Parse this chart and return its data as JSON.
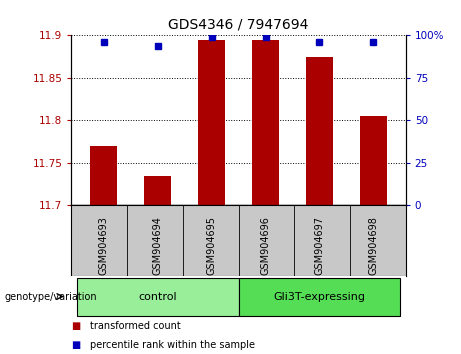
{
  "title": "GDS4346 / 7947694",
  "samples": [
    "GSM904693",
    "GSM904694",
    "GSM904695",
    "GSM904696",
    "GSM904697",
    "GSM904698"
  ],
  "transformed_counts": [
    11.77,
    11.735,
    11.895,
    11.895,
    11.875,
    11.805
  ],
  "percentile_ranks": [
    96,
    94,
    99,
    99,
    96,
    96
  ],
  "ylim_left": [
    11.7,
    11.9
  ],
  "ylim_right": [
    0,
    100
  ],
  "yticks_left": [
    11.7,
    11.75,
    11.8,
    11.85,
    11.9
  ],
  "yticks_right": [
    0,
    25,
    50,
    75,
    100
  ],
  "ytick_labels_left": [
    "11.7",
    "11.75",
    "11.8",
    "11.85",
    "11.9"
  ],
  "ytick_labels_right": [
    "0",
    "25",
    "50",
    "75",
    "100%"
  ],
  "groups": [
    {
      "label": "control",
      "samples_idx": [
        0,
        1,
        2
      ],
      "color": "#99EE99"
    },
    {
      "label": "Gli3T-expressing",
      "samples_idx": [
        3,
        4,
        5
      ],
      "color": "#55DD55"
    }
  ],
  "bar_color": "#AA0000",
  "dot_color": "#0000BB",
  "bar_width": 0.5,
  "xlabel_area_color": "#C8C8C8",
  "genotype_label": "genotype/variation",
  "legend_items": [
    {
      "color": "#AA0000",
      "label": "transformed count"
    },
    {
      "color": "#0000BB",
      "label": "percentile rank within the sample"
    }
  ],
  "title_fontsize": 10,
  "tick_fontsize": 7.5,
  "sample_fontsize": 7,
  "group_fontsize": 8
}
